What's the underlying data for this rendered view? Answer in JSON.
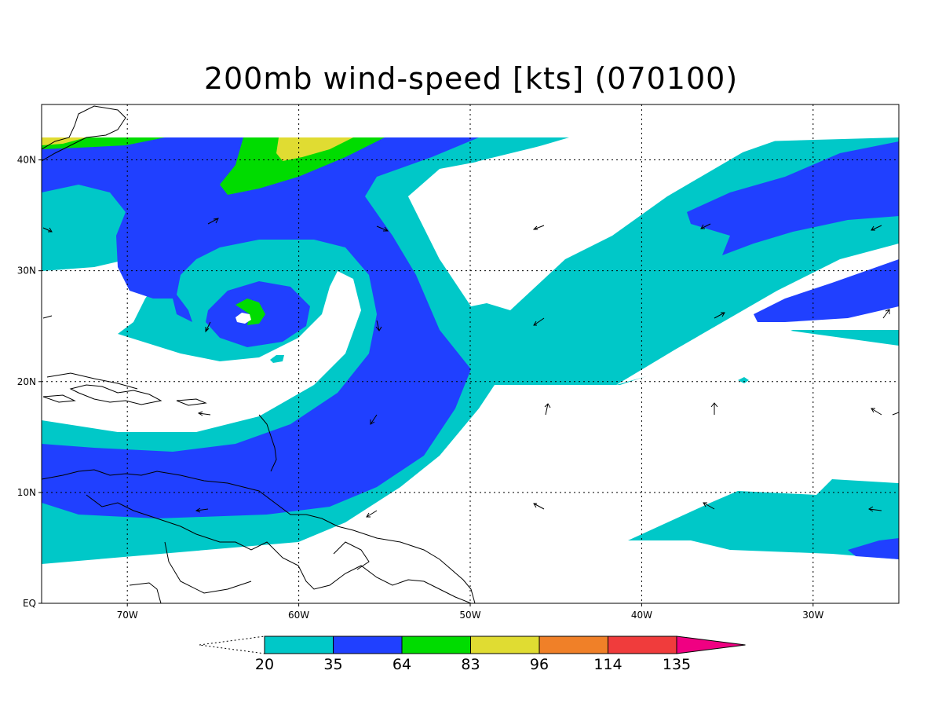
{
  "title": "200mb wind-speed [kts] (070100)",
  "map": {
    "lat_labels": [
      "40N",
      "30N",
      "20N",
      "10N",
      "EQ"
    ],
    "lon_labels": [
      "70W",
      "60W",
      "50W",
      "40W",
      "30W"
    ],
    "lat_values": [
      40,
      30,
      20,
      10,
      0
    ],
    "lon_values": [
      -70,
      -60,
      -50,
      -40,
      -30
    ],
    "extent": {
      "lon_min": -75,
      "lon_max": -25,
      "lat_min": 0,
      "lat_max": 45
    },
    "grid": "dotted"
  },
  "legend": {
    "levels": [
      "20",
      "35",
      "64",
      "83",
      "96",
      "114",
      "135"
    ],
    "colors": [
      "#00c8c8",
      "#2040ff",
      "#00dc00",
      "#e0dc32",
      "#f08028",
      "#f03c3c",
      "#f00082"
    ]
  }
}
